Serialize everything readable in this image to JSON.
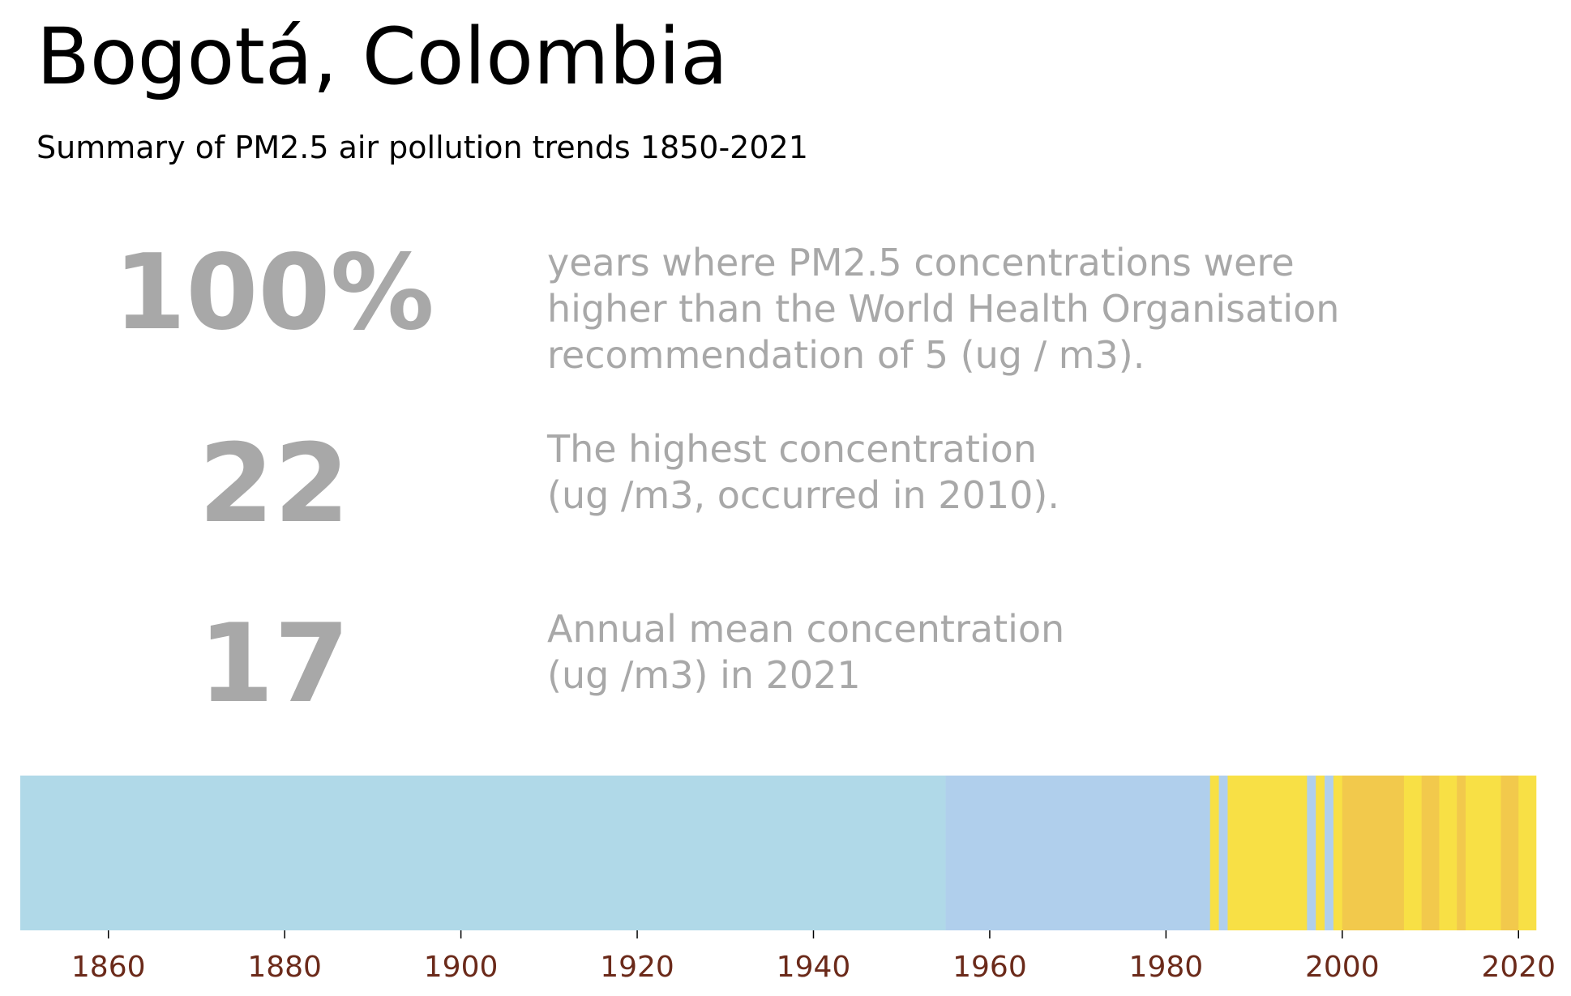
{
  "header": {
    "title": "Bogotá, Colombia",
    "subtitle": "Summary of PM2.5 air pollution trends 1850-2021"
  },
  "stats": [
    {
      "value": "100%",
      "lines": [
        "years where PM2.5 concentrations were",
        "higher than the World Health Organisation",
        "recommendation of 5 (ug / m3)."
      ]
    },
    {
      "value": "22",
      "lines": [
        "The highest concentration",
        "(ug /m3, occurred in 2010)."
      ]
    },
    {
      "value": "17",
      "lines": [
        "Annual mean concentration",
        "(ug /m3) in 2021"
      ]
    }
  ],
  "colors": {
    "stat_text": "#a8a8a8",
    "tick_label": "#6b2a1a",
    "band_light_blue": "#b0d9e8",
    "band_blue": "#b0cfec",
    "band_yellow": "#f8e045",
    "band_orange": "#f2c94c"
  },
  "chart_data": {
    "type": "heatmap",
    "title": "",
    "xlabel": "",
    "ylabel": "",
    "xlim": [
      1850,
      2022
    ],
    "xticks": [
      1860,
      1880,
      1900,
      1920,
      1940,
      1960,
      1980,
      2000,
      2020
    ],
    "grid": false,
    "legend": "none",
    "segments": [
      {
        "start": 1850,
        "end": 1955,
        "color": "#b0d9e8"
      },
      {
        "start": 1955,
        "end": 1985,
        "color": "#b0cfec"
      },
      {
        "start": 1985,
        "end": 1986,
        "color": "#f8e045"
      },
      {
        "start": 1986,
        "end": 1987,
        "color": "#b0cfec"
      },
      {
        "start": 1987,
        "end": 1996,
        "color": "#f8e045"
      },
      {
        "start": 1996,
        "end": 1997,
        "color": "#b0cfec"
      },
      {
        "start": 1997,
        "end": 1998,
        "color": "#f8e045"
      },
      {
        "start": 1998,
        "end": 1999,
        "color": "#b0cfec"
      },
      {
        "start": 1999,
        "end": 2000,
        "color": "#f8e045"
      },
      {
        "start": 2000,
        "end": 2007,
        "color": "#f2c94c"
      },
      {
        "start": 2007,
        "end": 2009,
        "color": "#f8e045"
      },
      {
        "start": 2009,
        "end": 2011,
        "color": "#f2c94c"
      },
      {
        "start": 2011,
        "end": 2013,
        "color": "#f8e045"
      },
      {
        "start": 2013,
        "end": 2014,
        "color": "#f2c94c"
      },
      {
        "start": 2014,
        "end": 2018,
        "color": "#f8e045"
      },
      {
        "start": 2018,
        "end": 2020,
        "color": "#f2c94c"
      },
      {
        "start": 2020,
        "end": 2022,
        "color": "#f8e045"
      }
    ]
  }
}
